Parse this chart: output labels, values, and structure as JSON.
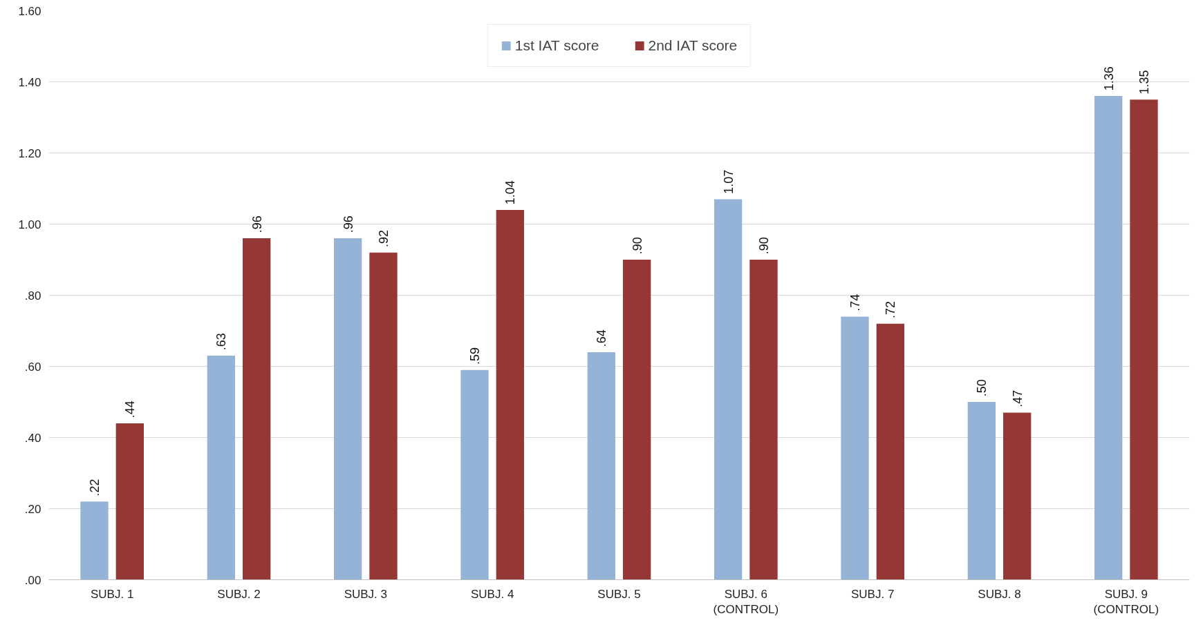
{
  "chart_data": {
    "type": "bar",
    "categories": [
      "SUBJ. 1",
      "SUBJ. 2",
      "SUBJ. 3",
      "SUBJ. 4",
      "SUBJ. 5",
      "SUBJ. 6\n(CONTROL)",
      "SUBJ. 7",
      "SUBJ. 8",
      "SUBJ. 9\n(CONTROL)"
    ],
    "series": [
      {
        "name": "1st IAT score",
        "color": "#95b3d7",
        "values": [
          0.22,
          0.63,
          0.96,
          0.59,
          0.64,
          1.07,
          0.74,
          0.5,
          1.36
        ],
        "value_labels": [
          ".22",
          ".63",
          ".96",
          ".59",
          ".64",
          "1.07",
          ".74",
          ".50",
          "1.36"
        ]
      },
      {
        "name": "2nd IAT score",
        "color": "#953735",
        "values": [
          0.44,
          0.96,
          0.92,
          1.04,
          0.9,
          0.9,
          0.72,
          0.47,
          1.35
        ],
        "value_labels": [
          ".44",
          ".96",
          ".92",
          "1.04",
          ".90",
          ".90",
          ".72",
          ".47",
          "1.35"
        ]
      }
    ],
    "ylim": [
      0,
      1.6
    ],
    "yticks": [
      {
        "value": 0,
        "label": ".00"
      },
      {
        "value": 0.2,
        "label": ".20"
      },
      {
        "value": 0.4,
        "label": ".40"
      },
      {
        "value": 0.6,
        "label": ".60"
      },
      {
        "value": 0.8,
        "label": ".80"
      },
      {
        "value": 1.0,
        "label": "1.00"
      },
      {
        "value": 1.2,
        "label": "1.20"
      },
      {
        "value": 1.4,
        "label": "1.40"
      },
      {
        "value": 1.6,
        "label": "1.60"
      }
    ],
    "grid": "y",
    "legend": "top"
  }
}
